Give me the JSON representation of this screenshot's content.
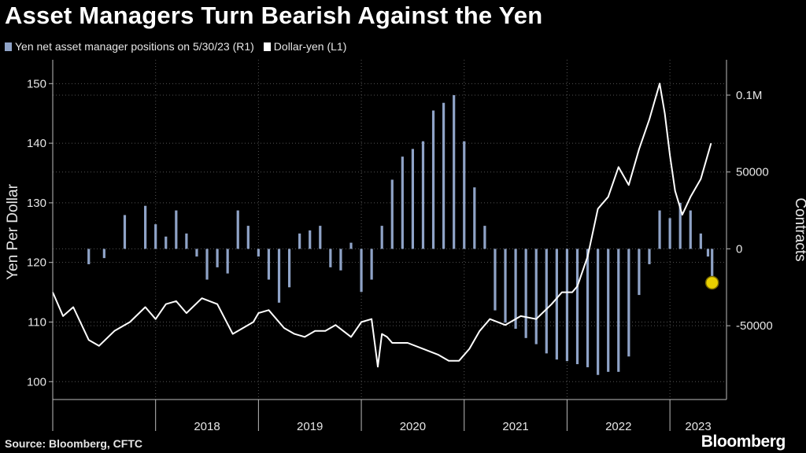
{
  "title": "Asset Managers Turn Bearish Against the Yen",
  "source": "Source: Bloomberg, CFTC",
  "brand": "Bloomberg",
  "chart_data": {
    "type": "bar+line",
    "x_tick_labels": [
      "2018",
      "2019",
      "2020",
      "2021",
      "2022",
      "2023"
    ],
    "left_axis": {
      "label": "Yen Per Dollar",
      "range": [
        97,
        154
      ],
      "ticks": [
        100,
        110,
        120,
        130,
        140,
        150
      ]
    },
    "right_axis": {
      "label": "Contracts",
      "range": [
        -98000,
        123000
      ],
      "ticks": [
        100000,
        50000,
        0,
        -50000
      ],
      "tick_labels": [
        "0.1M",
        "50000",
        "0",
        "-50000"
      ]
    },
    "grid": true,
    "series": [
      {
        "name": "Yen net asset manager positions on 5/30/23 (R1)",
        "type": "bar",
        "axis": "right",
        "color": "#8fa3c7",
        "highlight_color": "#e8d000",
        "x": [
          2017.35,
          2017.5,
          2017.7,
          2017.9,
          2018.0,
          2018.1,
          2018.2,
          2018.3,
          2018.4,
          2018.5,
          2018.6,
          2018.7,
          2018.8,
          2018.9,
          2019.0,
          2019.1,
          2019.2,
          2019.3,
          2019.4,
          2019.5,
          2019.6,
          2019.7,
          2019.8,
          2019.9,
          2020.0,
          2020.1,
          2020.2,
          2020.3,
          2020.4,
          2020.5,
          2020.6,
          2020.7,
          2020.8,
          2020.9,
          2021.0,
          2021.1,
          2021.2,
          2021.3,
          2021.4,
          2021.5,
          2021.6,
          2021.7,
          2021.8,
          2021.9,
          2022.0,
          2022.1,
          2022.2,
          2022.3,
          2022.4,
          2022.5,
          2022.6,
          2022.7,
          2022.8,
          2022.9,
          2023.0,
          2023.1,
          2023.2,
          2023.3,
          2023.37,
          2023.41
        ],
        "values": [
          -10000,
          -6000,
          22000,
          28000,
          16000,
          8000,
          25000,
          10000,
          -5000,
          -20000,
          -12000,
          -16000,
          25000,
          15000,
          -5000,
          -20000,
          -35000,
          -25000,
          10000,
          12000,
          15000,
          -12000,
          -14000,
          4000,
          -28000,
          -20000,
          15000,
          45000,
          60000,
          65000,
          70000,
          90000,
          95000,
          100000,
          70000,
          40000,
          15000,
          -40000,
          -48000,
          -52000,
          -58000,
          -62000,
          -68000,
          -72000,
          -73000,
          -75000,
          -77000,
          -82000,
          -80000,
          -80000,
          -70000,
          -30000,
          -10000,
          25000,
          20000,
          30000,
          25000,
          10000,
          -5000,
          -22000
        ]
      },
      {
        "name": "Dollar-yen (L1)",
        "type": "line",
        "axis": "left",
        "color": "#ffffff",
        "x": [
          2017.0,
          2017.1,
          2017.2,
          2017.35,
          2017.45,
          2017.6,
          2017.75,
          2017.9,
          2018.0,
          2018.1,
          2018.2,
          2018.3,
          2018.45,
          2018.6,
          2018.75,
          2018.95,
          2019.0,
          2019.1,
          2019.25,
          2019.35,
          2019.45,
          2019.55,
          2019.65,
          2019.75,
          2019.9,
          2020.0,
          2020.1,
          2020.16,
          2020.2,
          2020.25,
          2020.3,
          2020.45,
          2020.6,
          2020.75,
          2020.85,
          2020.95,
          2021.05,
          2021.15,
          2021.25,
          2021.4,
          2021.55,
          2021.7,
          2021.85,
          2021.95,
          2022.05,
          2022.1,
          2022.2,
          2022.3,
          2022.4,
          2022.5,
          2022.6,
          2022.7,
          2022.8,
          2022.85,
          2022.9,
          2022.95,
          2023.0,
          2023.05,
          2023.12,
          2023.2,
          2023.3,
          2023.35,
          2023.4
        ],
        "values": [
          115,
          111,
          112.5,
          107,
          106,
          108.5,
          110,
          112.5,
          110.5,
          113,
          113.5,
          111.5,
          114,
          113,
          108,
          110,
          111.5,
          112,
          109,
          108,
          107.5,
          108.5,
          108.5,
          109.5,
          107.5,
          110,
          110.5,
          102.5,
          108,
          107.5,
          106.5,
          106.5,
          105.5,
          104.5,
          103.5,
          103.5,
          105.5,
          108.5,
          110.5,
          109.5,
          111,
          110.5,
          113,
          115,
          115,
          116,
          121,
          129,
          131,
          136,
          133,
          139,
          144,
          147,
          150,
          145,
          138,
          132,
          128,
          131,
          134,
          137,
          140
        ]
      }
    ]
  }
}
